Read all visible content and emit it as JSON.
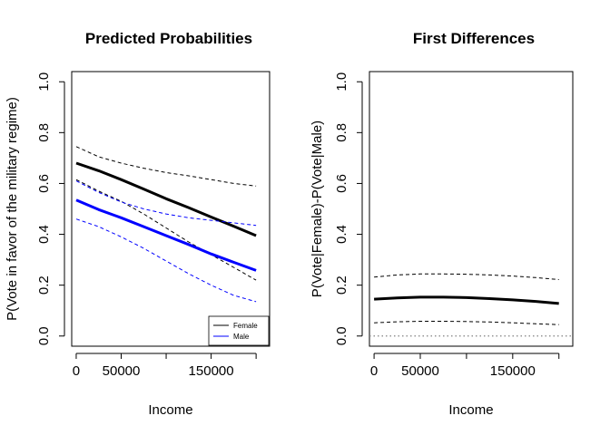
{
  "chart_data": [
    {
      "type": "line",
      "title": "Predicted Probabilities",
      "xlabel": "Income",
      "ylabel": "P(Vote in favor of the military regime)",
      "xlim": [
        -5000,
        215000
      ],
      "ylim": [
        -0.04,
        1.04
      ],
      "x_ticks": [
        0,
        50000,
        100000,
        150000,
        200000
      ],
      "x_tick_labels": [
        "0",
        "50000",
        "",
        "150000",
        ""
      ],
      "y_ticks": [
        0,
        0.2,
        0.4,
        0.6,
        0.8,
        1
      ],
      "y_tick_labels": [
        "0.0",
        "0.2",
        "0.4",
        "0.6",
        "0.8",
        "1.0"
      ],
      "legend": {
        "position": "bottom-right",
        "entries": [
          {
            "label": "Female",
            "color": "#000000"
          },
          {
            "label": "Male",
            "color": "#0000ff"
          }
        ]
      },
      "series": [
        {
          "name": "Female",
          "color": "#000000",
          "style": "solid",
          "width": 3,
          "x": [
            0,
            25000,
            50000,
            75000,
            100000,
            125000,
            150000,
            175000,
            200000
          ],
          "y": [
            0.68,
            0.65,
            0.615,
            0.578,
            0.54,
            0.505,
            0.468,
            0.432,
            0.395
          ]
        },
        {
          "color": "#000000",
          "style": "dashed",
          "width": 1,
          "x": [
            0,
            25000,
            50000,
            75000,
            100000,
            125000,
            150000,
            175000,
            200000
          ],
          "y": [
            0.745,
            0.705,
            0.68,
            0.66,
            0.643,
            0.63,
            0.615,
            0.6,
            0.59
          ]
        },
        {
          "color": "#000000",
          "style": "dashed",
          "width": 1,
          "x": [
            0,
            25000,
            50000,
            75000,
            100000,
            125000,
            150000,
            175000,
            200000
          ],
          "y": [
            0.615,
            0.57,
            0.53,
            0.48,
            0.425,
            0.37,
            0.32,
            0.27,
            0.22
          ]
        },
        {
          "name": "Male",
          "color": "#0000ff",
          "style": "solid",
          "width": 3,
          "x": [
            0,
            25000,
            50000,
            75000,
            100000,
            125000,
            150000,
            175000,
            200000
          ],
          "y": [
            0.535,
            0.497,
            0.465,
            0.43,
            0.395,
            0.36,
            0.323,
            0.29,
            0.258
          ]
        },
        {
          "color": "#0000ff",
          "style": "dashed",
          "width": 1,
          "x": [
            0,
            25000,
            50000,
            75000,
            100000,
            125000,
            150000,
            175000,
            200000
          ],
          "y": [
            0.61,
            0.565,
            0.527,
            0.5,
            0.48,
            0.465,
            0.455,
            0.445,
            0.435
          ]
        },
        {
          "color": "#0000ff",
          "style": "dashed",
          "width": 1,
          "x": [
            0,
            25000,
            50000,
            75000,
            100000,
            125000,
            150000,
            175000,
            200000
          ],
          "y": [
            0.46,
            0.43,
            0.39,
            0.345,
            0.295,
            0.245,
            0.2,
            0.16,
            0.135
          ]
        }
      ]
    },
    {
      "type": "line",
      "title": "First Differences",
      "xlabel": "Income",
      "ylabel": "P(Vote|Female)-P(Vote|Male)",
      "xlim": [
        -5000,
        215000
      ],
      "ylim": [
        -0.04,
        1.04
      ],
      "x_ticks": [
        0,
        50000,
        100000,
        150000,
        200000
      ],
      "x_tick_labels": [
        "0",
        "50000",
        "",
        "150000",
        ""
      ],
      "y_ticks": [
        0,
        0.2,
        0.4,
        0.6,
        0.8,
        1
      ],
      "y_tick_labels": [
        "0.0",
        "0.2",
        "0.4",
        "0.6",
        "0.8",
        "1.0"
      ],
      "reference_line": {
        "y": 0,
        "style": "dotted",
        "color": "#808080"
      },
      "series": [
        {
          "color": "#000000",
          "style": "solid",
          "width": 3,
          "x": [
            0,
            25000,
            50000,
            75000,
            100000,
            125000,
            150000,
            175000,
            200000
          ],
          "y": [
            0.145,
            0.15,
            0.153,
            0.153,
            0.151,
            0.147,
            0.142,
            0.136,
            0.128
          ]
        },
        {
          "color": "#000000",
          "style": "dashed",
          "width": 1,
          "x": [
            0,
            25000,
            50000,
            75000,
            100000,
            125000,
            150000,
            175000,
            200000
          ],
          "y": [
            0.232,
            0.24,
            0.244,
            0.244,
            0.243,
            0.24,
            0.236,
            0.23,
            0.222
          ]
        },
        {
          "color": "#000000",
          "style": "dashed",
          "width": 1,
          "x": [
            0,
            25000,
            50000,
            75000,
            100000,
            125000,
            150000,
            175000,
            200000
          ],
          "y": [
            0.052,
            0.056,
            0.058,
            0.058,
            0.057,
            0.055,
            0.052,
            0.048,
            0.045
          ]
        }
      ]
    }
  ]
}
